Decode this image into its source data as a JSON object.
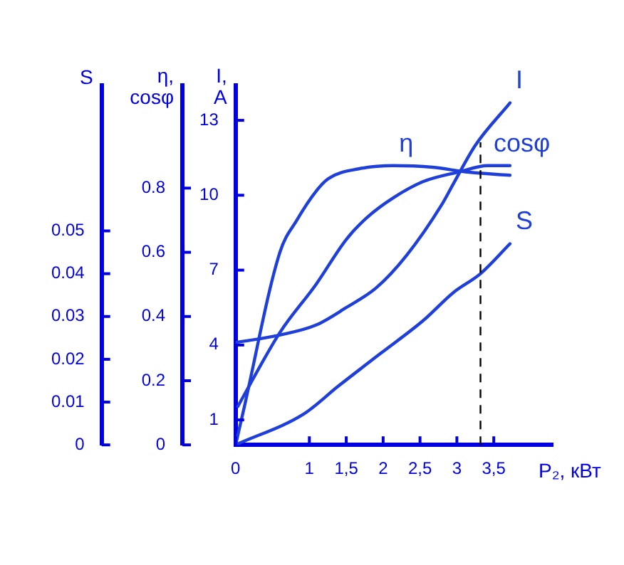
{
  "chart_data": {
    "type": "line",
    "xlabel": "P₂, кВт",
    "ylabel": "I, A",
    "y2label": "η, cosφ",
    "y3label": "S",
    "xlim": [
      0,
      4.3
    ],
    "xticks": [
      0,
      1,
      {
        "value": 1.5,
        "label": "1,5"
      },
      2,
      {
        "value": 2.5,
        "label": "2,5"
      },
      3,
      {
        "value": 3.5,
        "label": "3,5"
      }
    ],
    "ylim": [
      0,
      14.4
    ],
    "yticks": [
      1,
      4,
      7,
      10,
      13
    ],
    "y2lim": [
      0,
      1.12
    ],
    "y2ticks": [
      0,
      0.2,
      0.4,
      0.6,
      0.8
    ],
    "y3lim": [
      0,
      0.084
    ],
    "y3ticks": [
      0,
      0.01,
      0.02,
      0.03,
      0.04,
      0.05
    ],
    "series": [
      {
        "name": "η",
        "color": "#1f3fdb",
        "axis": "y2",
        "x": [
          0,
          0.1,
          0.6,
          0.83,
          1.09,
          1.26,
          1.67,
          2.14,
          2.67,
          3.14,
          3.72
        ],
        "values": [
          0,
          0.1,
          0.6,
          0.7,
          0.79,
          0.83,
          0.86,
          0.87,
          0.865,
          0.85,
          0.84
        ]
      },
      {
        "name": "cosφ",
        "color": "#1f3fdb",
        "axis": "y2",
        "x": [
          0.03,
          0.6,
          1.09,
          1.5,
          1.79,
          2.14,
          2.54,
          3.02,
          3.42,
          3.72
        ],
        "values": [
          0.12,
          0.35,
          0.5,
          0.64,
          0.71,
          0.77,
          0.82,
          0.85,
          0.87,
          0.87
        ]
      },
      {
        "name": "I",
        "color": "#1f3fdb",
        "axis": "y",
        "x": [
          0,
          0.6,
          1.09,
          1.5,
          1.91,
          2.32,
          2.79,
          2.96,
          3.25,
          3.72
        ],
        "values": [
          4.1,
          4.4,
          4.8,
          5.5,
          6.3,
          7.6,
          9.6,
          10.5,
          12,
          13.7
        ]
      },
      {
        "name": "S",
        "color": "#1f3fdb",
        "axis": "y3",
        "x": [
          0,
          0.93,
          1.39,
          1.96,
          2.54,
          2.96,
          3.32,
          3.72
        ],
        "values": [
          0,
          0.0073,
          0.0137,
          0.0213,
          0.029,
          0.0357,
          0.04,
          0.047
        ]
      }
    ],
    "ref_lines": [
      {
        "axis": "x",
        "value": 3.32,
        "color": "#000000",
        "line_style": "dashed"
      }
    ],
    "grid": false,
    "legend": false,
    "marker": "none",
    "line_style": "solid"
  }
}
